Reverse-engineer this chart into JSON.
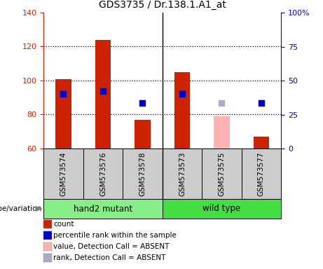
{
  "title": "GDS3735 / Dr.138.1.A1_at",
  "samples": [
    "GSM573574",
    "GSM573576",
    "GSM573578",
    "GSM573573",
    "GSM573575",
    "GSM573577"
  ],
  "counts": [
    101,
    124,
    77,
    105,
    null,
    67
  ],
  "counts_absent": [
    null,
    null,
    null,
    null,
    79,
    null
  ],
  "percentile_ranks_y": [
    92,
    94,
    87,
    92,
    null,
    87
  ],
  "percentile_ranks_absent_y": [
    null,
    null,
    null,
    null,
    87,
    null
  ],
  "ylim_left": [
    60,
    140
  ],
  "ylim_right": [
    0,
    100
  ],
  "yticks_left": [
    60,
    80,
    100,
    120,
    140
  ],
  "yticks_right": [
    0,
    25,
    50,
    75,
    100
  ],
  "ytick_labels_left": [
    "60",
    "80",
    "100",
    "120",
    "140"
  ],
  "ytick_labels_right": [
    "0",
    "25",
    "50",
    "75",
    "100%"
  ],
  "bar_color_present": "#cc2200",
  "bar_color_absent": "#ffb3b3",
  "square_color_present": "#0000cc",
  "square_color_absent": "#aaaacc",
  "group0_label": "hand2 mutant",
  "group0_color": "#88ee88",
  "group1_label": "wild type",
  "group1_color": "#44dd44",
  "group_row_label": "genotype/variation",
  "legend_items": [
    {
      "label": "count",
      "color": "#cc2200"
    },
    {
      "label": "percentile rank within the sample",
      "color": "#0000cc"
    },
    {
      "label": "value, Detection Call = ABSENT",
      "color": "#ffb3b3"
    },
    {
      "label": "rank, Detection Call = ABSENT",
      "color": "#aaaacc"
    }
  ],
  "base_value": 60,
  "background_label": "#cccccc",
  "dotted_lines": [
    80,
    100,
    120
  ],
  "bar_width": 0.4,
  "sq_size": 30
}
